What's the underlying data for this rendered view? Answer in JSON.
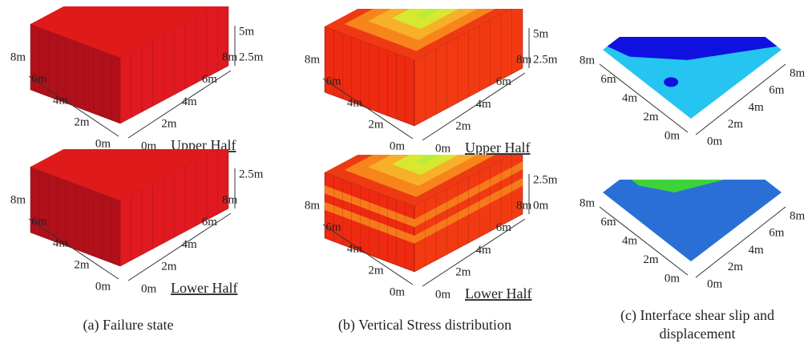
{
  "panels": [
    {
      "caption_lines": [
        "(a) Failure state"
      ],
      "upper": {
        "label": "Upper Half",
        "left_axis": [
          "8m",
          "6m",
          "4m",
          "2m",
          "0m"
        ],
        "right_axis": [
          "0m",
          "2m",
          "4m",
          "6m",
          "8m"
        ],
        "vertical_axis": [
          "5m",
          "2.5m"
        ]
      },
      "lower": {
        "label": "Lower Half",
        "left_axis": [
          "8m",
          "6m",
          "4m",
          "2m",
          "0m"
        ],
        "right_axis": [
          "0m",
          "2m",
          "4m",
          "6m",
          "8m"
        ],
        "vertical_axis": [
          "2.5m"
        ]
      }
    },
    {
      "caption_lines": [
        "(b) Vertical Stress distribution"
      ],
      "upper": {
        "label": "Upper Half",
        "left_axis": [
          "8m",
          "6m",
          "4m",
          "2m",
          "0m"
        ],
        "right_axis": [
          "0m",
          "2m",
          "4m",
          "6m",
          "8m"
        ],
        "vertical_axis": [
          "5m",
          "2.5m"
        ]
      },
      "lower": {
        "label": "Lower Half",
        "left_axis": [
          "8m",
          "6m",
          "4m",
          "2m",
          "0m"
        ],
        "right_axis": [
          "0m",
          "2m",
          "4m",
          "6m",
          "8m"
        ],
        "vertical_axis": [
          "2.5m",
          "0m"
        ]
      }
    },
    {
      "caption_lines": [
        "(c) Interface shear slip and",
        "displacement"
      ],
      "upper": {
        "left_axis": [
          "8m",
          "6m",
          "4m",
          "2m",
          "0m"
        ],
        "right_axis": [
          "0m",
          "2m",
          "4m",
          "6m",
          "8m"
        ]
      },
      "lower": {
        "left_axis": [
          "8m",
          "6m",
          "4m",
          "2m",
          "0m"
        ],
        "right_axis": [
          "0m",
          "2m",
          "4m",
          "6m",
          "8m"
        ]
      }
    }
  ]
}
